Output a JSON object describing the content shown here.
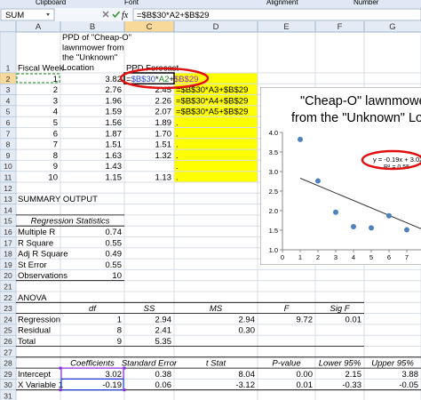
{
  "ribbon": [
    "Clipboard",
    "Font",
    "Alignment",
    "Number"
  ],
  "formula_bar": {
    "name_box": "SUM",
    "fx": "fx",
    "formula": "=$B$30*A2+$B$29"
  },
  "sheet": {
    "columns": [
      "A",
      "B",
      "C",
      "D",
      "E",
      "F",
      "G"
    ],
    "rows": [
      {
        "label": "1",
        "cells": {
          "A": "Fiscal Week",
          "B": [
            "PPD of \"Cheap-O\"",
            "lawnmower from",
            "the \"Unknown\"",
            "Location"
          ],
          "C": "PPD Forecast"
        }
      },
      {
        "label": "2",
        "cells": {
          "A": "1",
          "B": "3.82",
          "C": [
            {
              "text": "=",
              "color": "#000000"
            },
            {
              "text": "$B$30",
              "color": "#1f3fd8"
            },
            {
              "text": "*",
              "color": "#000000"
            },
            {
              "text": "A2",
              "color": "#1a8a1a"
            },
            {
              "text": "+",
              "color": "#000000"
            },
            {
              "text": "$B$29",
              "color": "#8a2be2"
            }
          ]
        }
      },
      {
        "label": "3",
        "cells": {
          "A": "2",
          "B": "2.76",
          "C": "2.45",
          "D": "=$B$30*A3+$B$29"
        }
      },
      {
        "label": "4",
        "cells": {
          "A": "3",
          "B": "1.96",
          "C": "2.26",
          "D": "=$B$30*A4+$B$29"
        }
      },
      {
        "label": "5",
        "cells": {
          "A": "4",
          "B": "1.59",
          "C": "2.07",
          "D": "=$B$30*A5+$B$29"
        }
      },
      {
        "label": "6",
        "cells": {
          "A": "5",
          "B": "1.56",
          "C": "1.89",
          "D": "."
        }
      },
      {
        "label": "7",
        "cells": {
          "A": "6",
          "B": "1.87",
          "C": "1.70",
          "D": "."
        }
      },
      {
        "label": "8",
        "cells": {
          "A": "7",
          "B": "1.51",
          "C": "1.51",
          "D": "."
        }
      },
      {
        "label": "9",
        "cells": {
          "A": "8",
          "B": "1.63",
          "C": "1.32",
          "D": "."
        }
      },
      {
        "label": "10",
        "cells": {
          "A": "9",
          "B": "1.43",
          "D": "."
        }
      },
      {
        "label": "11",
        "cells": {
          "A": "10",
          "B": "1.15",
          "C": "1.13",
          "D": "."
        }
      },
      {
        "label": "12",
        "cells": {}
      },
      {
        "label": "13",
        "cells": {
          "A": "SUMMARY OUTPUT"
        }
      },
      {
        "label": "14",
        "cells": {}
      },
      {
        "label": "15",
        "cells": {
          "A": "Regression Statistics"
        }
      },
      {
        "label": "16",
        "cells": {
          "A": "Multiple R",
          "B": "0.74"
        }
      },
      {
        "label": "17",
        "cells": {
          "A": "R Square",
          "B": "0.55"
        }
      },
      {
        "label": "18",
        "cells": {
          "A": "Adj R Square",
          "B": "0.49"
        }
      },
      {
        "label": "19",
        "cells": {
          "A": "St Error",
          "B": "0.55"
        }
      },
      {
        "label": "20",
        "cells": {
          "A": "Observations",
          "B": "10"
        }
      },
      {
        "label": "21",
        "cells": {}
      },
      {
        "label": "22",
        "cells": {
          "A": "ANOVA"
        }
      },
      {
        "label": "23",
        "cells": {
          "B": "df",
          "C": "SS",
          "D": "MS",
          "E": "F",
          "F": "Sig F"
        }
      },
      {
        "label": "24",
        "cells": {
          "A": "Regression",
          "B": "1",
          "C": "2.94",
          "D": "2.94",
          "E": "9.72",
          "F": "0.01"
        }
      },
      {
        "label": "25",
        "cells": {
          "A": "Residual",
          "B": "8",
          "C": "2.41",
          "D": "0.30"
        }
      },
      {
        "label": "26",
        "cells": {
          "A": "Total",
          "B": "9",
          "C": "5.35"
        }
      },
      {
        "label": "27",
        "cells": {}
      },
      {
        "label": "28",
        "cells": {
          "B": "Coefficients",
          "C": "Standard Error",
          "D": "t Stat",
          "E": "P-value",
          "F": "Lower 95%",
          "G": "Upper 95%"
        }
      },
      {
        "label": "29",
        "cells": {
          "A": "Intercept",
          "B": "3.02",
          "C": "0.38",
          "D": "8.04",
          "E": "0.00",
          "F": "2.15",
          "G": "3.88"
        }
      },
      {
        "label": "30",
        "cells": {
          "A": "X Variable 1",
          "B": "-0.19",
          "C": "0.06",
          "D": "-3.12",
          "E": "0.01",
          "F": "-0.33",
          "G": "-0.05"
        }
      },
      {
        "label": "31",
        "cells": {}
      }
    ]
  },
  "chart_data": {
    "type": "scatter",
    "title": [
      "\"Cheap-O\" lawnmowe",
      "from the \"Unknown\" Lo"
    ],
    "x": [
      1,
      2,
      3,
      4,
      5,
      6,
      7
    ],
    "values": [
      3.82,
      2.76,
      1.96,
      1.59,
      1.56,
      1.87,
      1.51
    ],
    "color": "#4f81bd",
    "xlim": [
      0,
      8
    ],
    "xticks": [
      0,
      1,
      2,
      3,
      4,
      5,
      6,
      7
    ],
    "ylim": [
      1,
      4
    ],
    "yticks": [
      {
        "value": 1,
        "label": "1.0"
      },
      {
        "value": 1.5,
        "label": "1.5"
      },
      {
        "value": 2,
        "label": "2.0"
      },
      {
        "value": 2.5,
        "label": "2.5"
      },
      {
        "value": 3,
        "label": "3.0"
      },
      {
        "value": 3.5,
        "label": "3.5"
      },
      {
        "value": 4,
        "label": "4.0"
      }
    ],
    "trendline": {
      "slope": -0.19,
      "intercept": 3.02,
      "equation": "y = -0.19x + 3.02",
      "r2": "R² = 0.55"
    }
  }
}
